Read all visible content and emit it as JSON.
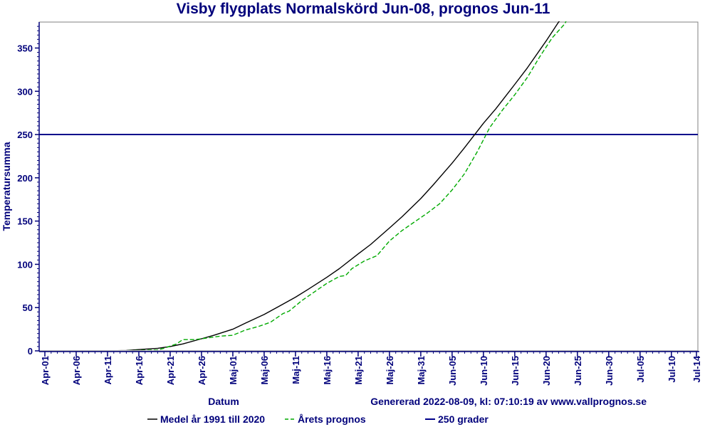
{
  "chart_data": {
    "type": "line",
    "title": "Visby flygplats Normalskörd Jun-08, prognos Jun-11",
    "xlabel": "Datum",
    "ylabel": "Temperatursumma",
    "generated": "Genererad 2022-08-09, kl: 07:10:19 av www.vallprognos.se",
    "x_ticks": [
      "Apr-01",
      "Apr-06",
      "Apr-11",
      "Apr-16",
      "Apr-21",
      "Apr-26",
      "Maj-01",
      "Maj-06",
      "Maj-11",
      "Maj-16",
      "Maj-21",
      "Maj-26",
      "Maj-31",
      "Jun-05",
      "Jun-10",
      "Jun-15",
      "Jun-20",
      "Jun-25",
      "Jun-30",
      "Jul-05",
      "Jul-10",
      "Jul-14"
    ],
    "y_ticks": [
      0,
      50,
      100,
      150,
      200,
      250,
      300,
      350
    ],
    "xlim": [
      "Apr-01",
      "Jul-14"
    ],
    "ylim": [
      0,
      380
    ],
    "grid": false,
    "legend_position": "bottom",
    "colors": {
      "axis": "#00007b",
      "medel": "#000000",
      "prognos": "#00aa00",
      "threshold": "#00008b"
    },
    "series": [
      {
        "name": "Medel år 1991 till 2020",
        "style": "solid",
        "x": [
          "Apr-01",
          "Apr-06",
          "Apr-11",
          "Apr-14",
          "Apr-16",
          "Apr-19",
          "Apr-21",
          "Apr-23",
          "Apr-26",
          "Apr-28",
          "Maj-01",
          "Maj-03",
          "Maj-06",
          "Maj-08",
          "Maj-11",
          "Maj-13",
          "Maj-16",
          "Maj-18",
          "Maj-21",
          "Maj-23",
          "Maj-26",
          "Maj-28",
          "Maj-31",
          "Jun-02",
          "Jun-05",
          "Jun-07",
          "Jun-10",
          "Jun-12",
          "Jun-15",
          "Jun-17",
          "Jun-20",
          "Jun-22",
          "Jun-25"
        ],
        "values": [
          0,
          0,
          0,
          0.5,
          1.5,
          3,
          5,
          8,
          14,
          18,
          25,
          32,
          42,
          50,
          62,
          71,
          85,
          95,
          112,
          123,
          142,
          155,
          176,
          192,
          217,
          235,
          263,
          280,
          308,
          327,
          358,
          380,
          405
        ]
      },
      {
        "name": "Årets prognos",
        "style": "dashed",
        "x": [
          "Apr-01",
          "Apr-06",
          "Apr-11",
          "Apr-16",
          "Apr-19",
          "Apr-20",
          "Apr-22",
          "Apr-23",
          "Apr-25",
          "Apr-27",
          "Apr-29",
          "Maj-01",
          "Maj-03",
          "Maj-05",
          "Maj-07",
          "Maj-09",
          "Maj-10",
          "Maj-12",
          "Maj-14",
          "Maj-16",
          "Maj-18",
          "Maj-19",
          "Maj-20",
          "Maj-22",
          "Maj-24",
          "Maj-26",
          "Maj-28",
          "Maj-30",
          "Jun-01",
          "Jun-03",
          "Jun-05",
          "Jun-07",
          "Jun-09",
          "Jun-11",
          "Jun-13",
          "Jun-15",
          "Jun-17",
          "Jun-19",
          "Jun-21",
          "Jun-23",
          "Jun-25"
        ],
        "values": [
          0,
          0,
          0,
          0.5,
          1,
          3,
          8,
          13,
          13,
          15,
          17,
          18,
          24,
          28,
          33,
          43,
          46,
          58,
          68,
          78,
          86,
          87,
          95,
          104,
          110,
          127,
          139,
          149,
          159,
          170,
          186,
          205,
          230,
          258,
          278,
          296,
          316,
          340,
          362,
          378,
          410
        ]
      },
      {
        "name": "250 grader",
        "style": "solid",
        "x": [
          "Apr-01",
          "Jul-14"
        ],
        "values": [
          250,
          250
        ]
      }
    ]
  }
}
